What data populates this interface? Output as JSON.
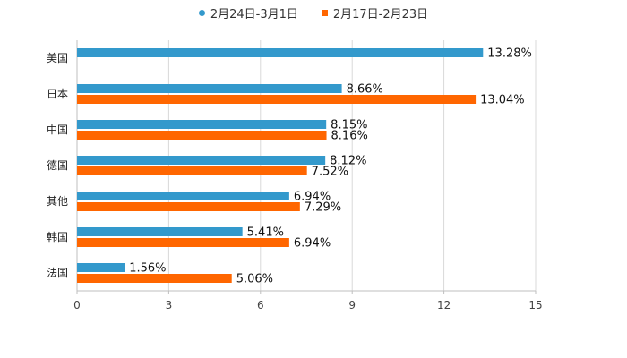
{
  "chart_data": {
    "type": "bar",
    "orientation": "horizontal",
    "categories": [
      "美国",
      "日本",
      "中国",
      "德国",
      "其他",
      "韩国",
      "法国"
    ],
    "series": [
      {
        "name": "2月24日-3月1日",
        "color": "#3399cc",
        "values": [
          13.28,
          8.66,
          8.15,
          8.12,
          6.94,
          5.41,
          1.56
        ],
        "labels": [
          "13.28%",
          "8.66%",
          "8.15%",
          "8.12%",
          "6.94%",
          "5.41%",
          "1.56%"
        ]
      },
      {
        "name": "2月17日-2月23日",
        "color": "#ff6600",
        "values": [
          null,
          13.04,
          8.16,
          7.52,
          7.29,
          6.94,
          5.06
        ],
        "labels": [
          "",
          "13.04%",
          "8.16%",
          "7.52%",
          "7.29%",
          "6.94%",
          "5.06%"
        ]
      }
    ],
    "xlim": [
      0,
      15
    ],
    "xticks": [
      0,
      3,
      6,
      9,
      12,
      15
    ],
    "xtick_labels": [
      "0",
      "3",
      "6",
      "9",
      "12",
      "15"
    ],
    "grid": true,
    "legend_position": "top-center"
  }
}
